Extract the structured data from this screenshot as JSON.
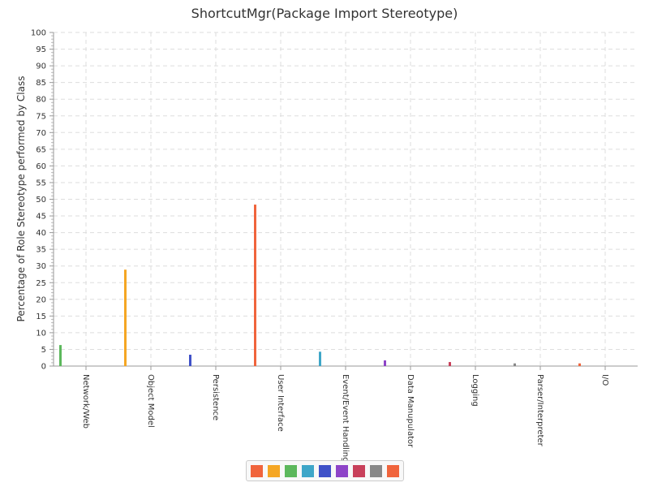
{
  "chart_data": {
    "type": "bar",
    "title": "ShortcutMgr(Package Import Stereotype)",
    "xlabel": "",
    "ylabel": "Percentage of Role Stereotype performed by Class",
    "ylim": [
      0,
      100
    ],
    "yticks": [
      0,
      5,
      10,
      15,
      20,
      25,
      30,
      35,
      40,
      45,
      50,
      55,
      60,
      65,
      70,
      75,
      80,
      85,
      90,
      95,
      100
    ],
    "categories": [
      "Network/Web",
      "Object Model",
      "Persistence",
      "User Interface",
      "Event/Event Handling",
      "Data Manupulator",
      "Logging",
      "Parser/Interpreter",
      "I/O"
    ],
    "values": [
      6.3,
      28.9,
      3.4,
      48.4,
      4.3,
      1.7,
      1.2,
      0.8,
      0.8
    ],
    "colors": [
      "#5cb85c",
      "#f5a623",
      "#3f51c8",
      "#f0643c",
      "#3ea6c8",
      "#8e44c8",
      "#c8405a",
      "#888888",
      "#f0643c"
    ],
    "legend_colors": [
      "#f0643c",
      "#f5a623",
      "#5cb85c",
      "#3ea6c8",
      "#3f51c8",
      "#8e44c8",
      "#c8405a",
      "#888888",
      "#f0643c"
    ],
    "grid": true,
    "legend_position": "bottom"
  }
}
